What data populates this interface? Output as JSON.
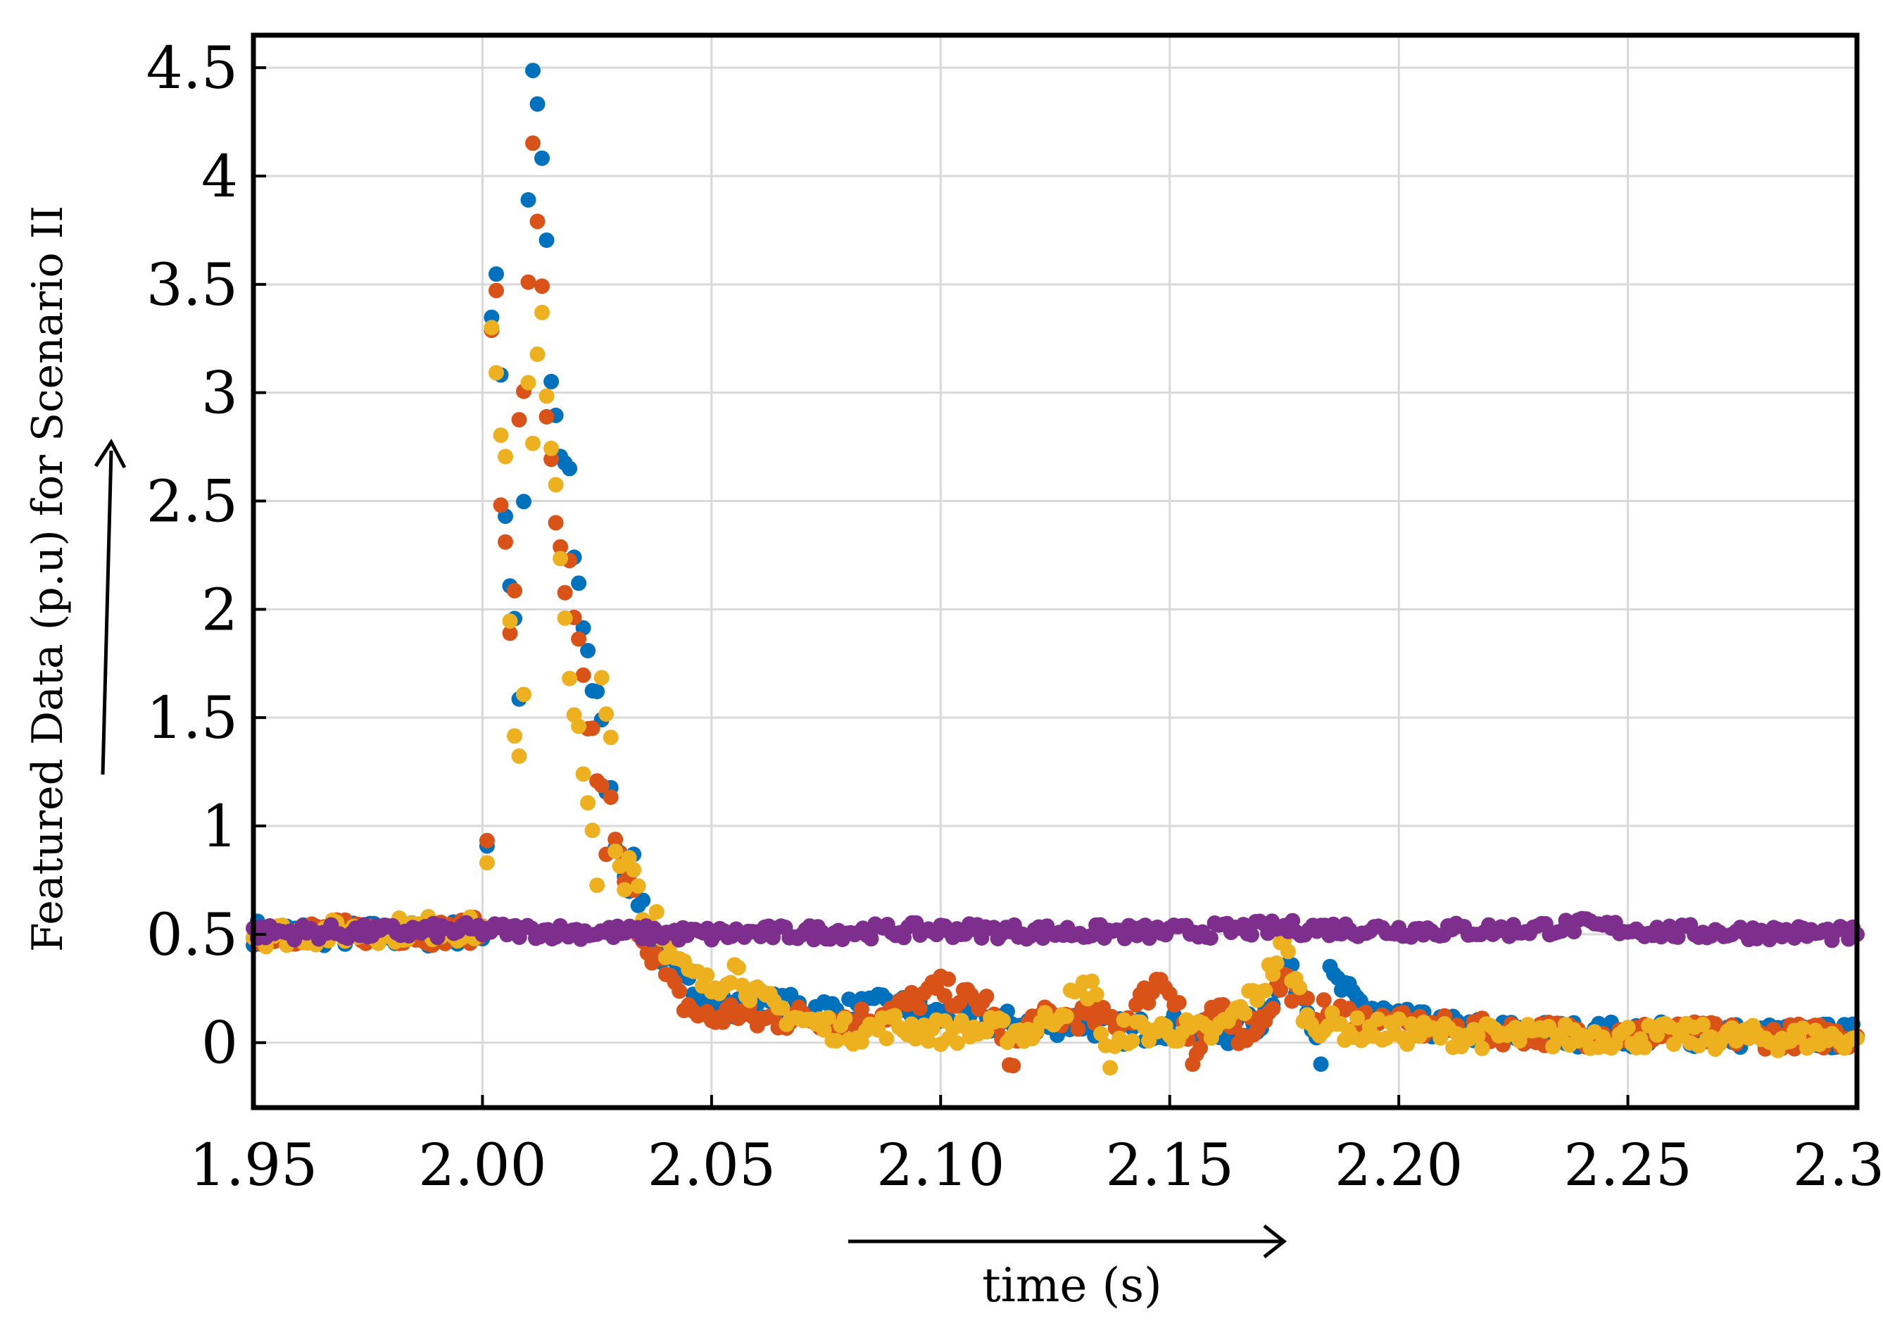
{
  "chart_data": {
    "type": "scatter",
    "title": "",
    "xlabel": "time (s)",
    "ylabel": "Featured Data (p.u) for Scenario II",
    "xlim": [
      1.95,
      2.3
    ],
    "ylim": [
      -0.3,
      4.65
    ],
    "x_ticks": [
      1.95,
      2.0,
      2.05,
      2.1,
      2.15,
      2.2,
      2.25,
      2.3
    ],
    "x_tick_labels": [
      "1.95",
      "2.00",
      "2.05",
      "2.10",
      "2.15",
      "2.20",
      "2.25",
      "2.30"
    ],
    "y_ticks": [
      0,
      0.5,
      1,
      1.5,
      2,
      2.5,
      3,
      3.5,
      4,
      4.5
    ],
    "y_tick_labels": [
      "0",
      "0.5",
      "1",
      "1.5",
      "2",
      "2.5",
      "3",
      "3.5",
      "4",
      "4.5"
    ],
    "grid": true,
    "legend": "none",
    "series": [
      {
        "color": "#0072BD",
        "points": [
          [
            1.95,
            0.51
          ],
          [
            1.97,
            0.5
          ],
          [
            1.99,
            0.5
          ],
          [
            2.0,
            0.52
          ],
          [
            2.001,
            0.93
          ],
          [
            2.002,
            3.4
          ],
          [
            2.003,
            3.58
          ],
          [
            2.004,
            3.1
          ],
          [
            2.005,
            2.47
          ],
          [
            2.006,
            2.1
          ],
          [
            2.007,
            1.93
          ],
          [
            2.008,
            1.65
          ],
          [
            2.009,
            2.4
          ],
          [
            2.01,
            3.9
          ],
          [
            2.011,
            4.4
          ],
          [
            2.012,
            4.3
          ],
          [
            2.013,
            4.05
          ],
          [
            2.014,
            3.7
          ],
          [
            2.015,
            3.05
          ],
          [
            2.016,
            2.85
          ],
          [
            2.017,
            2.6
          ],
          [
            2.018,
            2.7
          ],
          [
            2.019,
            2.6
          ],
          [
            2.02,
            2.3
          ],
          [
            2.021,
            2.1
          ],
          [
            2.022,
            1.95
          ],
          [
            2.023,
            1.85
          ],
          [
            2.024,
            1.65
          ],
          [
            2.025,
            1.55
          ],
          [
            2.026,
            1.4
          ],
          [
            2.027,
            1.25
          ],
          [
            2.028,
            1.1
          ],
          [
            2.029,
            1.0
          ],
          [
            2.03,
            0.9
          ],
          [
            2.032,
            0.8
          ],
          [
            2.034,
            0.7
          ],
          [
            2.036,
            0.55
          ],
          [
            2.038,
            0.45
          ],
          [
            2.04,
            0.38
          ],
          [
            2.043,
            0.3
          ],
          [
            2.046,
            0.25
          ],
          [
            2.05,
            0.22
          ],
          [
            2.055,
            0.15
          ],
          [
            2.06,
            0.18
          ],
          [
            2.07,
            0.16
          ],
          [
            2.08,
            0.15
          ],
          [
            2.09,
            0.17
          ],
          [
            2.1,
            0.12
          ],
          [
            2.11,
            0.1
          ],
          [
            2.12,
            0.08
          ],
          [
            2.13,
            0.1
          ],
          [
            2.14,
            0.05
          ],
          [
            2.15,
            0.08
          ],
          [
            2.16,
            0.03
          ],
          [
            2.17,
            0.1
          ],
          [
            2.175,
            0.35
          ],
          [
            2.18,
            0.2
          ],
          [
            2.183,
            -0.05
          ],
          [
            2.185,
            0.3
          ],
          [
            2.19,
            0.2
          ],
          [
            2.195,
            0.15
          ],
          [
            2.2,
            0.1
          ],
          [
            2.21,
            0.07
          ],
          [
            2.22,
            0.05
          ],
          [
            2.24,
            0.04
          ],
          [
            2.26,
            0.04
          ],
          [
            2.28,
            0.03
          ],
          [
            2.3,
            0.03
          ]
        ]
      },
      {
        "color": "#D95319",
        "points": [
          [
            1.95,
            0.51
          ],
          [
            1.97,
            0.51
          ],
          [
            1.99,
            0.51
          ],
          [
            2.0,
            0.52
          ],
          [
            2.001,
            0.95
          ],
          [
            2.002,
            3.4
          ],
          [
            2.003,
            3.55
          ],
          [
            2.004,
            2.42
          ],
          [
            2.005,
            2.25
          ],
          [
            2.006,
            1.95
          ],
          [
            2.007,
            2.0
          ],
          [
            2.008,
            2.8
          ],
          [
            2.009,
            3.05
          ],
          [
            2.01,
            3.52
          ],
          [
            2.011,
            4.2
          ],
          [
            2.012,
            3.85
          ],
          [
            2.013,
            3.4
          ],
          [
            2.014,
            2.8
          ],
          [
            2.015,
            2.65
          ],
          [
            2.016,
            2.4
          ],
          [
            2.017,
            2.2
          ],
          [
            2.018,
            2.0
          ],
          [
            2.019,
            2.15
          ],
          [
            2.02,
            1.9
          ],
          [
            2.021,
            1.75
          ],
          [
            2.022,
            1.65
          ],
          [
            2.023,
            1.5
          ],
          [
            2.024,
            1.4
          ],
          [
            2.025,
            1.25
          ],
          [
            2.026,
            1.1
          ],
          [
            2.027,
            0.95
          ],
          [
            2.028,
            1.05
          ],
          [
            2.029,
            0.9
          ],
          [
            2.03,
            0.8
          ],
          [
            2.032,
            0.7
          ],
          [
            2.034,
            0.55
          ],
          [
            2.036,
            0.45
          ],
          [
            2.038,
            0.4
          ],
          [
            2.04,
            0.3
          ],
          [
            2.043,
            0.2
          ],
          [
            2.046,
            0.15
          ],
          [
            2.05,
            0.1
          ],
          [
            2.055,
            0.15
          ],
          [
            2.06,
            0.1
          ],
          [
            2.07,
            0.12
          ],
          [
            2.08,
            0.1
          ],
          [
            2.09,
            0.15
          ],
          [
            2.1,
            0.25
          ],
          [
            2.105,
            0.2
          ],
          [
            2.11,
            0.18
          ],
          [
            2.115,
            -0.08
          ],
          [
            2.12,
            0.1
          ],
          [
            2.13,
            0.12
          ],
          [
            2.14,
            0.1
          ],
          [
            2.148,
            0.3
          ],
          [
            2.152,
            0.2
          ],
          [
            2.155,
            -0.1
          ],
          [
            2.16,
            0.15
          ],
          [
            2.165,
            0.05
          ],
          [
            2.17,
            0.1
          ],
          [
            2.175,
            0.3
          ],
          [
            2.18,
            0.15
          ],
          [
            2.19,
            0.12
          ],
          [
            2.2,
            0.08
          ],
          [
            2.22,
            0.05
          ],
          [
            2.24,
            0.04
          ],
          [
            2.26,
            0.04
          ],
          [
            2.28,
            0.03
          ],
          [
            2.3,
            0.03
          ]
        ]
      },
      {
        "color": "#EDB120",
        "points": [
          [
            1.95,
            0.5
          ],
          [
            1.97,
            0.51
          ],
          [
            1.99,
            0.53
          ],
          [
            2.0,
            0.52
          ],
          [
            2.001,
            0.92
          ],
          [
            2.002,
            3.2
          ],
          [
            2.003,
            3.05
          ],
          [
            2.004,
            2.75
          ],
          [
            2.005,
            2.6
          ],
          [
            2.006,
            1.9
          ],
          [
            2.007,
            1.5
          ],
          [
            2.008,
            1.35
          ],
          [
            2.009,
            1.62
          ],
          [
            2.01,
            3.1
          ],
          [
            2.011,
            2.85
          ],
          [
            2.012,
            3.2
          ],
          [
            2.013,
            3.3
          ],
          [
            2.014,
            2.95
          ],
          [
            2.015,
            2.7
          ],
          [
            2.016,
            2.5
          ],
          [
            2.017,
            2.15
          ],
          [
            2.018,
            1.95
          ],
          [
            2.019,
            1.8
          ],
          [
            2.02,
            1.55
          ],
          [
            2.021,
            1.35
          ],
          [
            2.022,
            1.2
          ],
          [
            2.023,
            1.05
          ],
          [
            2.024,
            0.9
          ],
          [
            2.025,
            0.75
          ],
          [
            2.026,
            1.62
          ],
          [
            2.027,
            1.55
          ],
          [
            2.028,
            1.4
          ],
          [
            2.029,
            1.0
          ],
          [
            2.03,
            0.8
          ],
          [
            2.032,
            0.85
          ],
          [
            2.034,
            0.75
          ],
          [
            2.036,
            0.55
          ],
          [
            2.038,
            0.6
          ],
          [
            2.04,
            0.45
          ],
          [
            2.043,
            0.35
          ],
          [
            2.046,
            0.3
          ],
          [
            2.05,
            0.25
          ],
          [
            2.055,
            0.35
          ],
          [
            2.06,
            0.2
          ],
          [
            2.07,
            0.1
          ],
          [
            2.08,
            0.05
          ],
          [
            2.09,
            0.08
          ],
          [
            2.1,
            0.05
          ],
          [
            2.11,
            0.06
          ],
          [
            2.12,
            0.05
          ],
          [
            2.133,
            0.27
          ],
          [
            2.137,
            -0.1
          ],
          [
            2.14,
            0.05
          ],
          [
            2.15,
            0.06
          ],
          [
            2.16,
            0.04
          ],
          [
            2.17,
            0.25
          ],
          [
            2.175,
            0.45
          ],
          [
            2.18,
            0.1
          ],
          [
            2.19,
            0.06
          ],
          [
            2.2,
            0.05
          ],
          [
            2.22,
            0.03
          ],
          [
            2.24,
            0.03
          ],
          [
            2.26,
            0.03
          ],
          [
            2.28,
            0.02
          ],
          [
            2.3,
            0.02
          ]
        ]
      },
      {
        "color": "#7E2F8E",
        "points": [
          [
            1.95,
            0.51
          ],
          [
            1.975,
            0.51
          ],
          [
            2.0,
            0.52
          ],
          [
            2.025,
            0.51
          ],
          [
            2.05,
            0.5
          ],
          [
            2.075,
            0.51
          ],
          [
            2.1,
            0.52
          ],
          [
            2.125,
            0.51
          ],
          [
            2.15,
            0.51
          ],
          [
            2.175,
            0.53
          ],
          [
            2.2,
            0.52
          ],
          [
            2.225,
            0.52
          ],
          [
            2.24,
            0.54
          ],
          [
            2.26,
            0.51
          ],
          [
            2.28,
            0.51
          ],
          [
            2.3,
            0.5
          ]
        ]
      }
    ]
  }
}
